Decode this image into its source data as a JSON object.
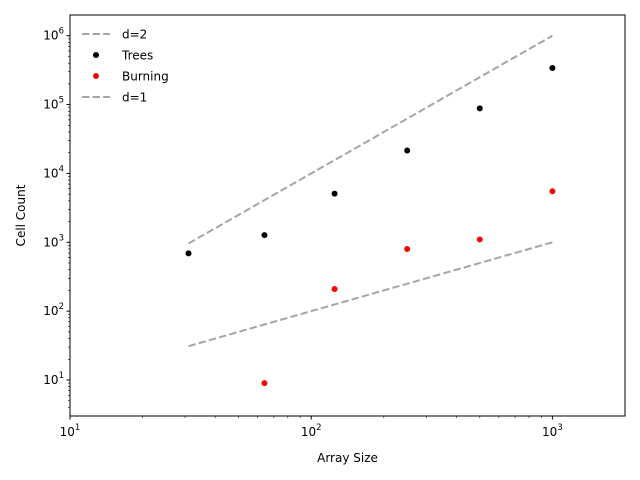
{
  "chart_data": {
    "type": "scatter",
    "xlabel": "Array Size",
    "ylabel": "Cell Count",
    "xscale": "log",
    "yscale": "log",
    "xlim": [
      10,
      2000
    ],
    "ylim": [
      3,
      2000000
    ],
    "grid": false,
    "legend_position": "top-left",
    "x_ticks": [
      {
        "value": 10,
        "base": "10",
        "exp": "1"
      },
      {
        "value": 100,
        "base": "10",
        "exp": "2"
      },
      {
        "value": 1000,
        "base": "10",
        "exp": "3"
      }
    ],
    "y_ticks": [
      {
        "value": 10,
        "base": "10",
        "exp": "1"
      },
      {
        "value": 100,
        "base": "10",
        "exp": "2"
      },
      {
        "value": 1000,
        "base": "10",
        "exp": "3"
      },
      {
        "value": 10000,
        "base": "10",
        "exp": "4"
      },
      {
        "value": 100000,
        "base": "10",
        "exp": "5"
      },
      {
        "value": 1000000,
        "base": "10",
        "exp": "6"
      }
    ],
    "series": [
      {
        "name": "d=2",
        "kind": "line",
        "style": "dashed",
        "color": "#a5a5a5",
        "x": [
          31,
          1000
        ],
        "y": [
          961,
          1000000
        ]
      },
      {
        "name": "Trees",
        "kind": "scatter",
        "color": "#000000",
        "x": [
          31,
          64,
          125,
          250,
          500,
          1000
        ],
        "y": [
          690,
          1270,
          5100,
          21500,
          88000,
          340000
        ]
      },
      {
        "name": "Burning",
        "kind": "scatter",
        "color": "#ff0000",
        "x": [
          64,
          125,
          250,
          500,
          1000
        ],
        "y": [
          9,
          210,
          800,
          1100,
          5500
        ]
      },
      {
        "name": "d=1",
        "kind": "line",
        "style": "dashed",
        "color": "#a5a5a5",
        "x": [
          31,
          1000
        ],
        "y": [
          31,
          1000
        ]
      }
    ]
  }
}
